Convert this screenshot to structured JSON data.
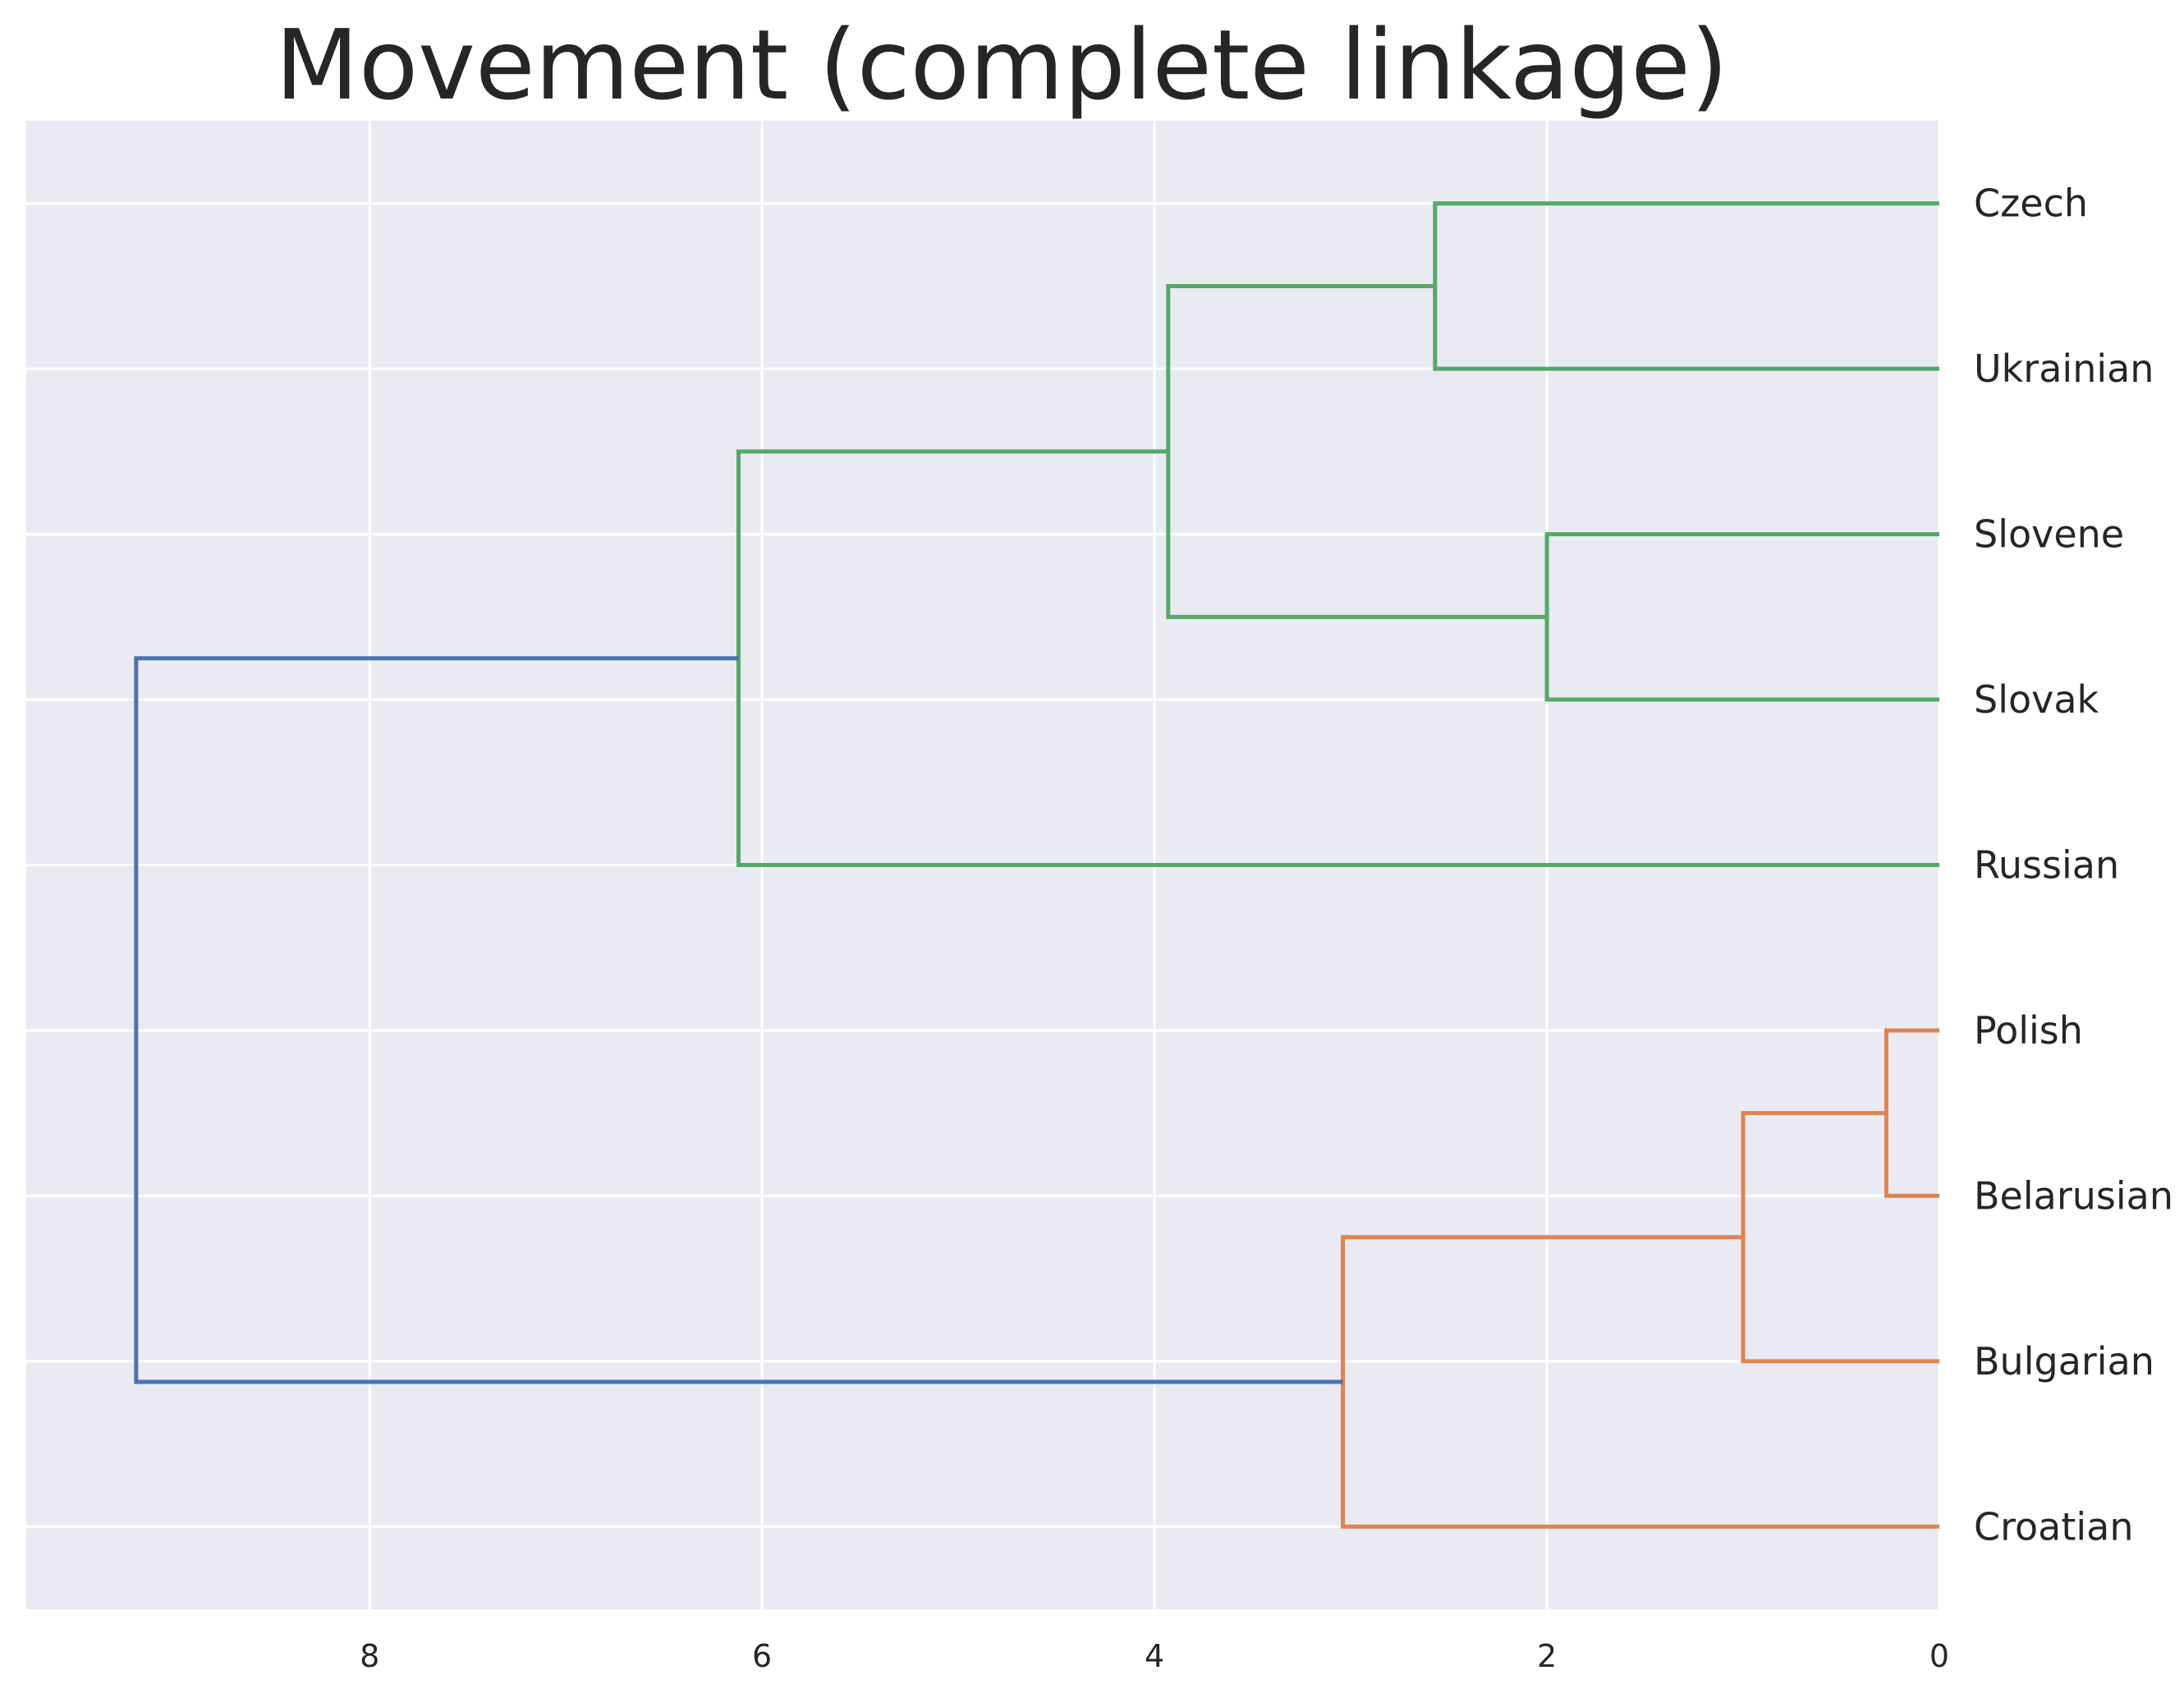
{
  "chart_data": {
    "type": "dendrogram",
    "title": "Movement (complete linkage)",
    "orientation": "left",
    "xlim": [
      9.75,
      0
    ],
    "xticks": [
      8,
      6,
      4,
      2,
      0
    ],
    "grid": true,
    "colors": {
      "background": "#eaeaf2",
      "grid": "#ffffff",
      "cluster_green": "#55a868",
      "cluster_orange": "#dd8452",
      "link_above_threshold": "#4c72b0"
    },
    "leaves": [
      "Czech",
      "Ukrainian",
      "Slovene",
      "Slovak",
      "Russian",
      "Polish",
      "Belarusian",
      "Bulgarian",
      "Croatian"
    ],
    "merges": [
      {
        "members": [
          "Czech",
          "Ukrainian"
        ],
        "distance": 2.57,
        "color": "#55a868"
      },
      {
        "members": [
          "Slovene",
          "Slovak"
        ],
        "distance": 2.0,
        "color": "#55a868"
      },
      {
        "members": [
          "Czech",
          "Ukrainian",
          "Slovene",
          "Slovak"
        ],
        "distance": 3.93,
        "color": "#55a868"
      },
      {
        "members": [
          "Czech",
          "Ukrainian",
          "Slovene",
          "Slovak",
          "Russian"
        ],
        "distance": 6.12,
        "color": "#55a868"
      },
      {
        "members": [
          "Polish",
          "Belarusian"
        ],
        "distance": 0.27,
        "color": "#dd8452"
      },
      {
        "members": [
          "Polish",
          "Belarusian",
          "Bulgarian"
        ],
        "distance": 1.0,
        "color": "#dd8452"
      },
      {
        "members": [
          "Polish",
          "Belarusian",
          "Bulgarian",
          "Croatian"
        ],
        "distance": 3.04,
        "color": "#dd8452"
      },
      {
        "members": [
          "Czech",
          "Ukrainian",
          "Slovene",
          "Slovak",
          "Russian",
          "Polish",
          "Belarusian",
          "Bulgarian",
          "Croatian"
        ],
        "distance": 9.19,
        "color": "#4c72b0"
      }
    ]
  }
}
